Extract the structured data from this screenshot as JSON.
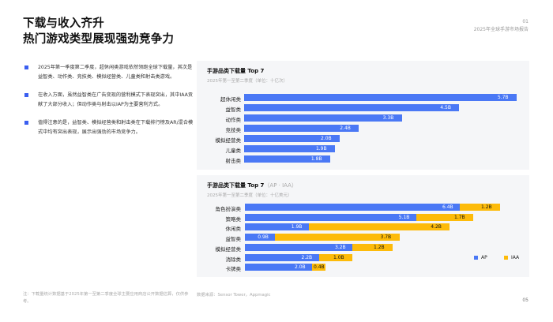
{
  "header": {
    "title_line1": "下载与收入齐升",
    "title_line2": "热门游戏类型展现强劲竞争力",
    "section_no": "01",
    "report_name": "2025年全球手游市场报告"
  },
  "bullets": [
    "2025年第一季度第二季度，超休闲类游戏依然领跑全球下载量，其次是益智类、动作类、竞技类、模拟经营类、儿童类和射击类游戏。",
    "在收入方面，虽然益智类在广告变现的营利模式下表现突出，其中IAA贡献了大部分收入；但动作类与射击以IAP为主要营利方式。",
    "值得注意的是，益智类、模拟经营类和射击类在下载排行榜及AR/混合模式中均有突出表现，展示出强劲的市场竞争力。"
  ],
  "colors": {
    "accent": "#3a5ef0",
    "bar_blue": "#4a78f5",
    "bar_yellow": "#fdbb0a",
    "panel_bg": "#f5f6f8"
  },
  "chart_data": [
    {
      "type": "bar",
      "orientation": "horizontal",
      "title": "手游品类下载量 Top 7",
      "subtitle": "2025年第一至第二季度（单位：十亿次）",
      "categories": [
        "超休闲类",
        "益智类",
        "动作类",
        "竞技类",
        "模拟经营类",
        "儿童类",
        "射击类"
      ],
      "values": [
        5.7,
        4.5,
        3.3,
        2.4,
        2.0,
        1.9,
        1.8
      ],
      "value_labels": [
        "5.7B",
        "4.5B",
        "3.3B",
        "2.4B",
        "2.0B",
        "1.9B",
        "1.8B"
      ],
      "xlim": [
        0,
        5.9
      ]
    },
    {
      "type": "bar",
      "orientation": "horizontal",
      "stacked": true,
      "title": "手游品类下载量 Top 7",
      "title_suffix": "（AP · IAA）",
      "subtitle": "2025年第一至第二季度（单位：十亿美元）",
      "categories": [
        "角色扮演类",
        "策略类",
        "休闲类",
        "益智类",
        "模拟经营类",
        "消除类",
        "卡牌类"
      ],
      "series": [
        {
          "name": "AP",
          "values": [
            6.4,
            5.1,
            1.9,
            0.9,
            3.2,
            2.2,
            2.0
          ],
          "labels": [
            "6.4B",
            "5.1B",
            "1.9B",
            "0.9B",
            "3.2B",
            "2.2B",
            "2.0B"
          ]
        },
        {
          "name": "IAA",
          "values": [
            1.2,
            1.7,
            4.2,
            3.7,
            1.2,
            1.0,
            0.4
          ],
          "labels": [
            "1.2B",
            "1.7B",
            "4.2B",
            "3.7B",
            "1.2B",
            "1.0B",
            "0.4B"
          ]
        }
      ],
      "legend": [
        "AP",
        "IAA"
      ],
      "legend_position": "bottom-right",
      "xlim": [
        0,
        8.0
      ]
    }
  ],
  "footnote": "注：下载量统计数据基于2025年第一至第二季度全球主要应用商店公开数据估算，仅供参考。",
  "source": "数据来源：Sensor Tower，Appmagic",
  "page_number": "05"
}
